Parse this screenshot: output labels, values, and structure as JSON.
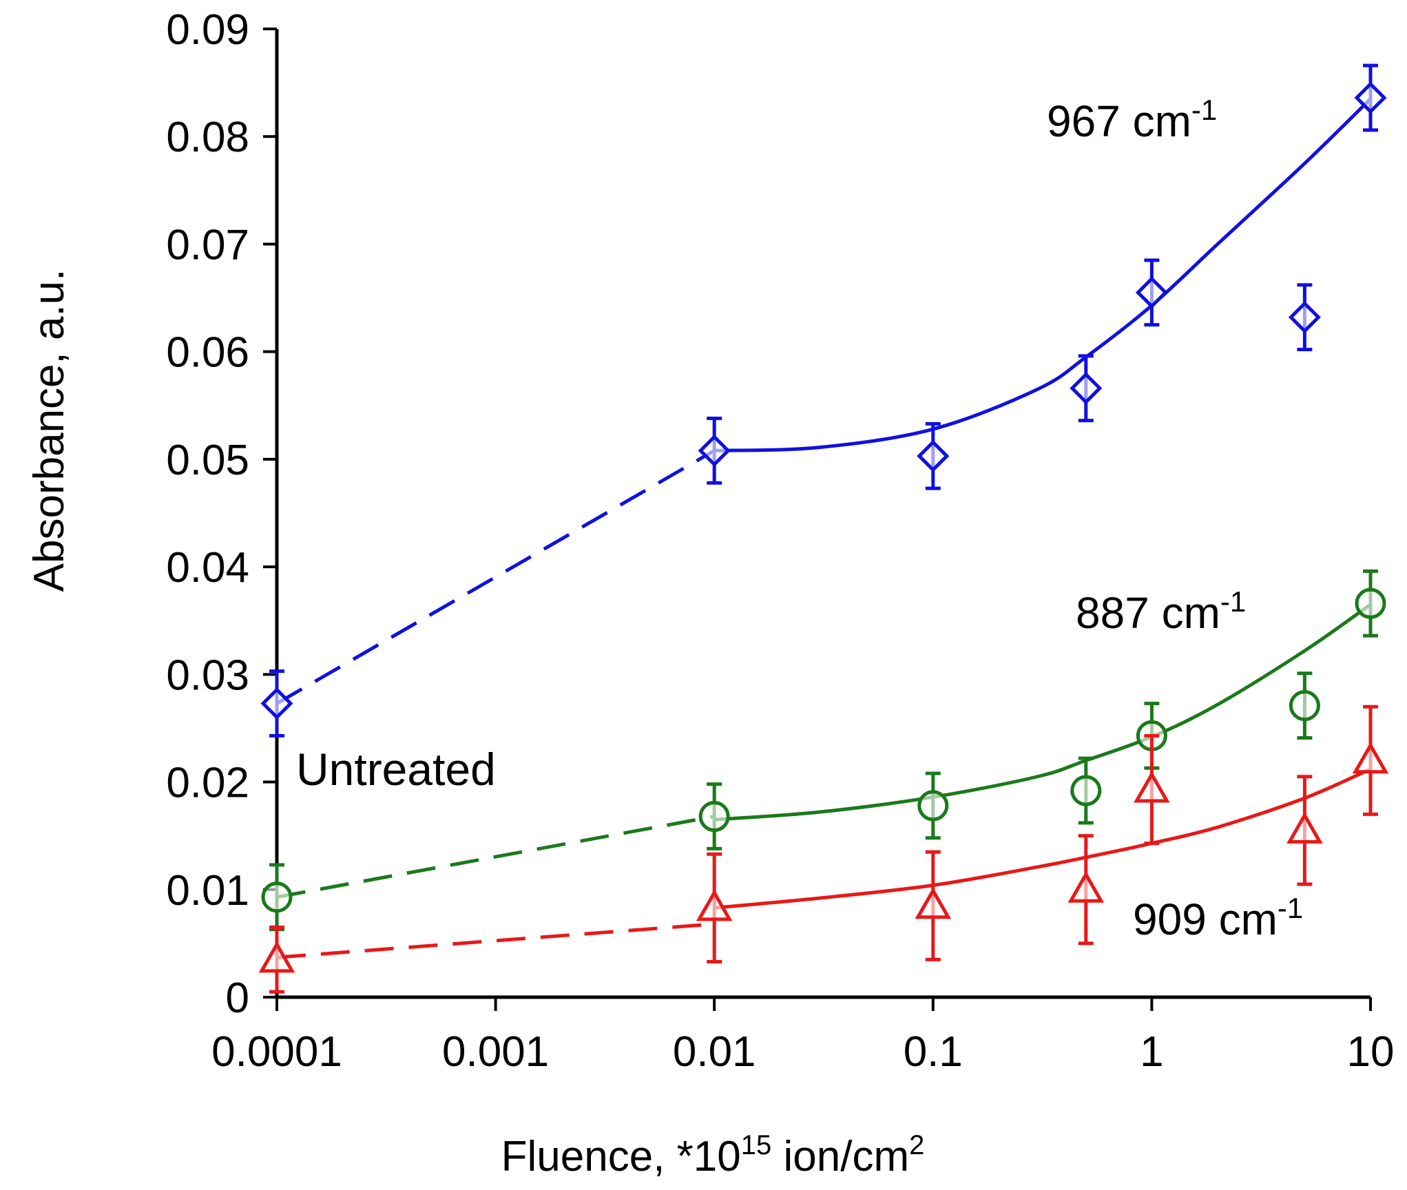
{
  "chart_data": {
    "type": "scatter",
    "xscale": "log",
    "xlim": [
      0.0001,
      10
    ],
    "ylim": [
      0,
      0.09
    ],
    "xlabel": {
      "main": "Fluence, *10",
      "sup": "15",
      "rest": " ion/cm",
      "sup2": "2"
    },
    "ylabel": "Absorbance, a.u.",
    "xticks": [
      {
        "value": 0.0001,
        "label": "0.0001"
      },
      {
        "value": 0.001,
        "label": "0.001"
      },
      {
        "value": 0.01,
        "label": "0.01"
      },
      {
        "value": 0.1,
        "label": "0.1"
      },
      {
        "value": 1,
        "label": "1"
      },
      {
        "value": 10,
        "label": "10"
      }
    ],
    "yticks": [
      {
        "value": 0,
        "label": "0"
      },
      {
        "value": 0.01,
        "label": "0.01"
      },
      {
        "value": 0.02,
        "label": "0.02"
      },
      {
        "value": 0.03,
        "label": "0.03"
      },
      {
        "value": 0.04,
        "label": "0.04"
      },
      {
        "value": 0.05,
        "label": "0.05"
      },
      {
        "value": 0.06,
        "label": "0.06"
      },
      {
        "value": 0.07,
        "label": "0.07"
      },
      {
        "value": 0.08,
        "label": "0.08"
      },
      {
        "value": 0.09,
        "label": "0.09"
      }
    ],
    "annotation_untreated": "Untreated",
    "series": [
      {
        "name": "967 cm-1",
        "label_main": "967 cm",
        "label_sup": "-1",
        "color": "#1010e0",
        "marker": "diamond",
        "x": [
          0.0001,
          0.01,
          0.1,
          0.5,
          1,
          5,
          10
        ],
        "y": [
          0.0273,
          0.0508,
          0.0503,
          0.0566,
          0.0655,
          0.0632,
          0.0836
        ],
        "err": [
          0.003,
          0.003,
          0.003,
          0.003,
          0.003,
          0.003,
          0.003
        ],
        "dashed": [
          [
            0.0001,
            0.0273
          ],
          [
            0.01,
            0.0508
          ]
        ],
        "fit": [
          [
            0.01,
            0.0508
          ],
          [
            0.03,
            0.0511
          ],
          [
            0.1,
            0.0528
          ],
          [
            0.3,
            0.0565
          ],
          [
            0.5,
            0.0595
          ],
          [
            1,
            0.0643
          ],
          [
            2,
            0.07
          ],
          [
            5,
            0.0775
          ],
          [
            10,
            0.0835
          ]
        ]
      },
      {
        "name": "887 cm-1",
        "label_main": "887 cm",
        "label_sup": "-1",
        "color": "#1a7a1a",
        "marker": "circle",
        "x": [
          0.0001,
          0.01,
          0.1,
          0.5,
          1,
          5,
          10
        ],
        "y": [
          0.0093,
          0.0168,
          0.0178,
          0.0192,
          0.0243,
          0.0271,
          0.0366
        ],
        "err": [
          0.003,
          0.003,
          0.003,
          0.003,
          0.003,
          0.003,
          0.003
        ],
        "dashed": [
          [
            0.0001,
            0.0093
          ],
          [
            0.01,
            0.0168
          ]
        ],
        "fit": [
          [
            0.01,
            0.0165
          ],
          [
            0.03,
            0.0172
          ],
          [
            0.1,
            0.0186
          ],
          [
            0.3,
            0.0205
          ],
          [
            0.5,
            0.022
          ],
          [
            1,
            0.0242
          ],
          [
            2,
            0.0272
          ],
          [
            5,
            0.0322
          ],
          [
            10,
            0.0365
          ]
        ]
      },
      {
        "name": "909 cm-1",
        "label_main": "909 cm",
        "label_sup": "-1",
        "color": "#e81818",
        "marker": "triangle",
        "x": [
          0.0001,
          0.01,
          0.1,
          0.5,
          1,
          5,
          10
        ],
        "y": [
          0.0035,
          0.0083,
          0.0085,
          0.01,
          0.0193,
          0.0155,
          0.022
        ],
        "err": [
          0.003,
          0.005,
          0.005,
          0.005,
          0.005,
          0.005,
          0.005
        ],
        "dashed": [
          [
            0.0001,
            0.0037
          ],
          [
            0.01,
            0.0068
          ]
        ],
        "fit": [
          [
            0.01,
            0.0083
          ],
          [
            0.03,
            0.0092
          ],
          [
            0.1,
            0.0104
          ],
          [
            0.3,
            0.0121
          ],
          [
            0.5,
            0.013
          ],
          [
            1,
            0.0143
          ],
          [
            2,
            0.0158
          ],
          [
            5,
            0.0185
          ],
          [
            10,
            0.0212
          ]
        ]
      }
    ]
  }
}
